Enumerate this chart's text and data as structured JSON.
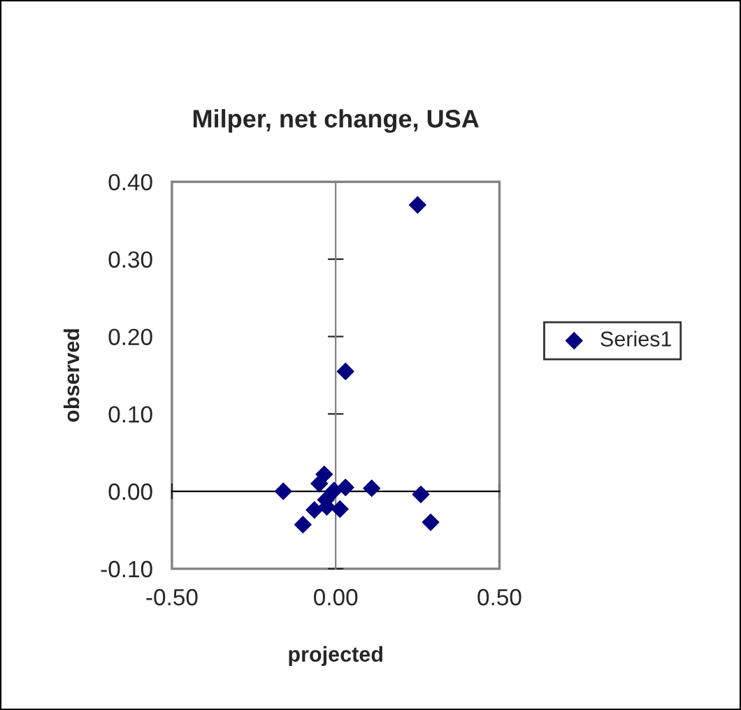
{
  "chart_data": {
    "type": "scatter",
    "title": "Milper, net change, USA",
    "xlabel": "projected",
    "ylabel": "observed",
    "series": [
      {
        "name": "Series1",
        "color": "#000080",
        "x": [
          0.25,
          0.03,
          -0.035,
          -0.05,
          -0.16,
          0.03,
          0.11,
          0.26,
          0.29,
          -0.1,
          -0.065,
          -0.027,
          0.013,
          -0.005,
          -0.03
        ],
        "values": [
          0.37,
          0.155,
          0.022,
          0.01,
          0.0,
          0.005,
          0.004,
          -0.004,
          -0.04,
          -0.043,
          -0.024,
          -0.02,
          -0.023,
          0.001,
          -0.011
        ]
      }
    ],
    "xlim": [
      -0.5,
      0.5
    ],
    "ylim": [
      -0.1,
      0.4
    ],
    "xticks": [
      {
        "value": -0.5,
        "label": "-0.50"
      },
      {
        "value": 0,
        "label": "0.00"
      },
      {
        "value": 0.5,
        "label": "0.50"
      }
    ],
    "yticks": [
      {
        "value": -0.1,
        "label": "-0.10"
      },
      {
        "value": 0,
        "label": "0.00"
      },
      {
        "value": 0.1,
        "label": "0.10"
      },
      {
        "value": 0.2,
        "label": "0.20"
      },
      {
        "value": 0.3,
        "label": "0.30"
      },
      {
        "value": 0.4,
        "label": "0.40"
      }
    ],
    "marker": "diamond",
    "legend": "right",
    "grid": false
  }
}
